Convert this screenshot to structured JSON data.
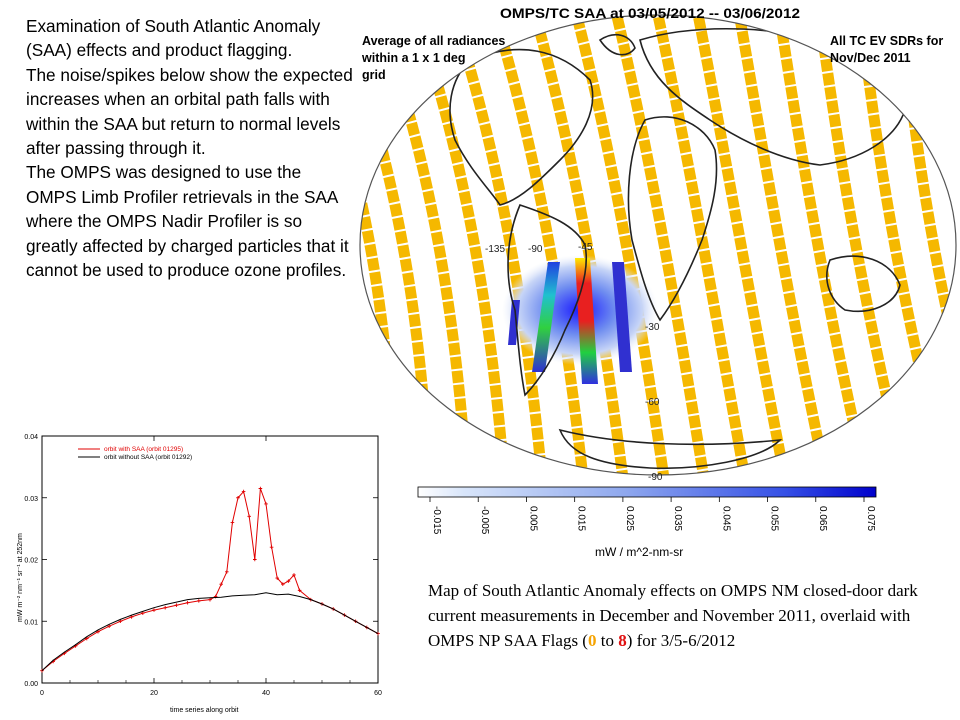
{
  "intro": {
    "p1": "Examination of South Atlantic Anomaly (SAA) effects and product flagging.",
    "p2": "The noise/spikes below show the expected increases when an orbital path falls with within the SAA but return to normal levels after passing through it.",
    "p3": "The OMPS was designed to use the OMPS Limb Profiler retrievals in the SAA where the OMPS Nadir Profiler is so greatly affected by charged particles that it cannot be used to produce ozone profiles."
  },
  "map": {
    "title": "OMPS/TC SAA at 03/05/2012 -- 03/06/2012",
    "note_left": [
      "Average of all radiances",
      "within a 1 x 1 deg",
      "grid"
    ],
    "note_right": [
      "All TC EV SDRs for",
      "Nov/Dec 2011"
    ],
    "lon_labels": [
      "-135",
      "-90",
      "-45"
    ],
    "lat_labels": [
      "-30",
      "-60",
      "-90"
    ],
    "colors": {
      "swath": "#f5b800",
      "saa_core": "#1a1aff"
    },
    "colorbar": {
      "ticks": [
        "-0.015",
        "-0.005",
        "0.005",
        "0.015",
        "0.025",
        "0.035",
        "0.045",
        "0.055",
        "0.065",
        "0.075"
      ],
      "unit": "mW / m^2-nm-sr",
      "color_low": "#ffffff",
      "color_high": "#0000cc"
    }
  },
  "chart_data": {
    "type": "line",
    "xlabel": "time series along orbit",
    "ylabel": "mW m⁻² nm⁻¹ sr⁻¹ at 252nm",
    "xlim": [
      0,
      60
    ],
    "ylim": [
      0,
      0.04
    ],
    "x_ticks": [
      "0",
      "20",
      "40",
      "60"
    ],
    "y_ticks": [
      "0.00",
      "0.01",
      "0.02",
      "0.03",
      "0.04"
    ],
    "legend_placement": "top-left",
    "series": [
      {
        "name": "orbit with SAA (orbit 01295)",
        "color": "#e00000",
        "x": [
          0,
          2,
          4,
          6,
          8,
          10,
          12,
          14,
          16,
          18,
          20,
          22,
          24,
          26,
          28,
          30,
          31,
          32,
          33,
          34,
          35,
          36,
          37,
          38,
          39,
          40,
          41,
          42,
          43,
          44,
          45,
          46,
          48,
          50,
          52,
          54,
          56,
          58,
          60
        ],
        "y": [
          0.002,
          0.0035,
          0.0048,
          0.006,
          0.0072,
          0.0083,
          0.0092,
          0.01,
          0.0107,
          0.0113,
          0.0118,
          0.0122,
          0.0126,
          0.013,
          0.0133,
          0.0135,
          0.014,
          0.016,
          0.018,
          0.026,
          0.03,
          0.031,
          0.027,
          0.02,
          0.0315,
          0.029,
          0.022,
          0.017,
          0.016,
          0.0165,
          0.0175,
          0.015,
          0.0135,
          0.0128,
          0.012,
          0.011,
          0.01,
          0.009,
          0.008
        ]
      },
      {
        "name": "orbit without SAA (orbit 01292)",
        "color": "#000000",
        "x": [
          0,
          2,
          4,
          6,
          8,
          10,
          12,
          14,
          16,
          18,
          20,
          22,
          24,
          26,
          28,
          30,
          32,
          34,
          36,
          38,
          40,
          42,
          44,
          46,
          48,
          50,
          52,
          54,
          56,
          58,
          60
        ],
        "y": [
          0.002,
          0.0037,
          0.005,
          0.0062,
          0.0075,
          0.0086,
          0.0095,
          0.0103,
          0.011,
          0.0116,
          0.0122,
          0.0127,
          0.0131,
          0.0135,
          0.0137,
          0.0138,
          0.0139,
          0.0141,
          0.0142,
          0.0143,
          0.0146,
          0.0143,
          0.0144,
          0.014,
          0.0135,
          0.0128,
          0.012,
          0.011,
          0.01,
          0.009,
          0.008
        ]
      }
    ]
  },
  "caption": {
    "pre": "Map of South Atlantic Anomaly effects on OMPS NM closed-door dark current measurements in December and November 2011, overlaid with OMPS NP SAA Flags (",
    "flag_min": "0",
    "mid": " to ",
    "flag_max": "8",
    "post": ") for 3/5-6/2012"
  }
}
